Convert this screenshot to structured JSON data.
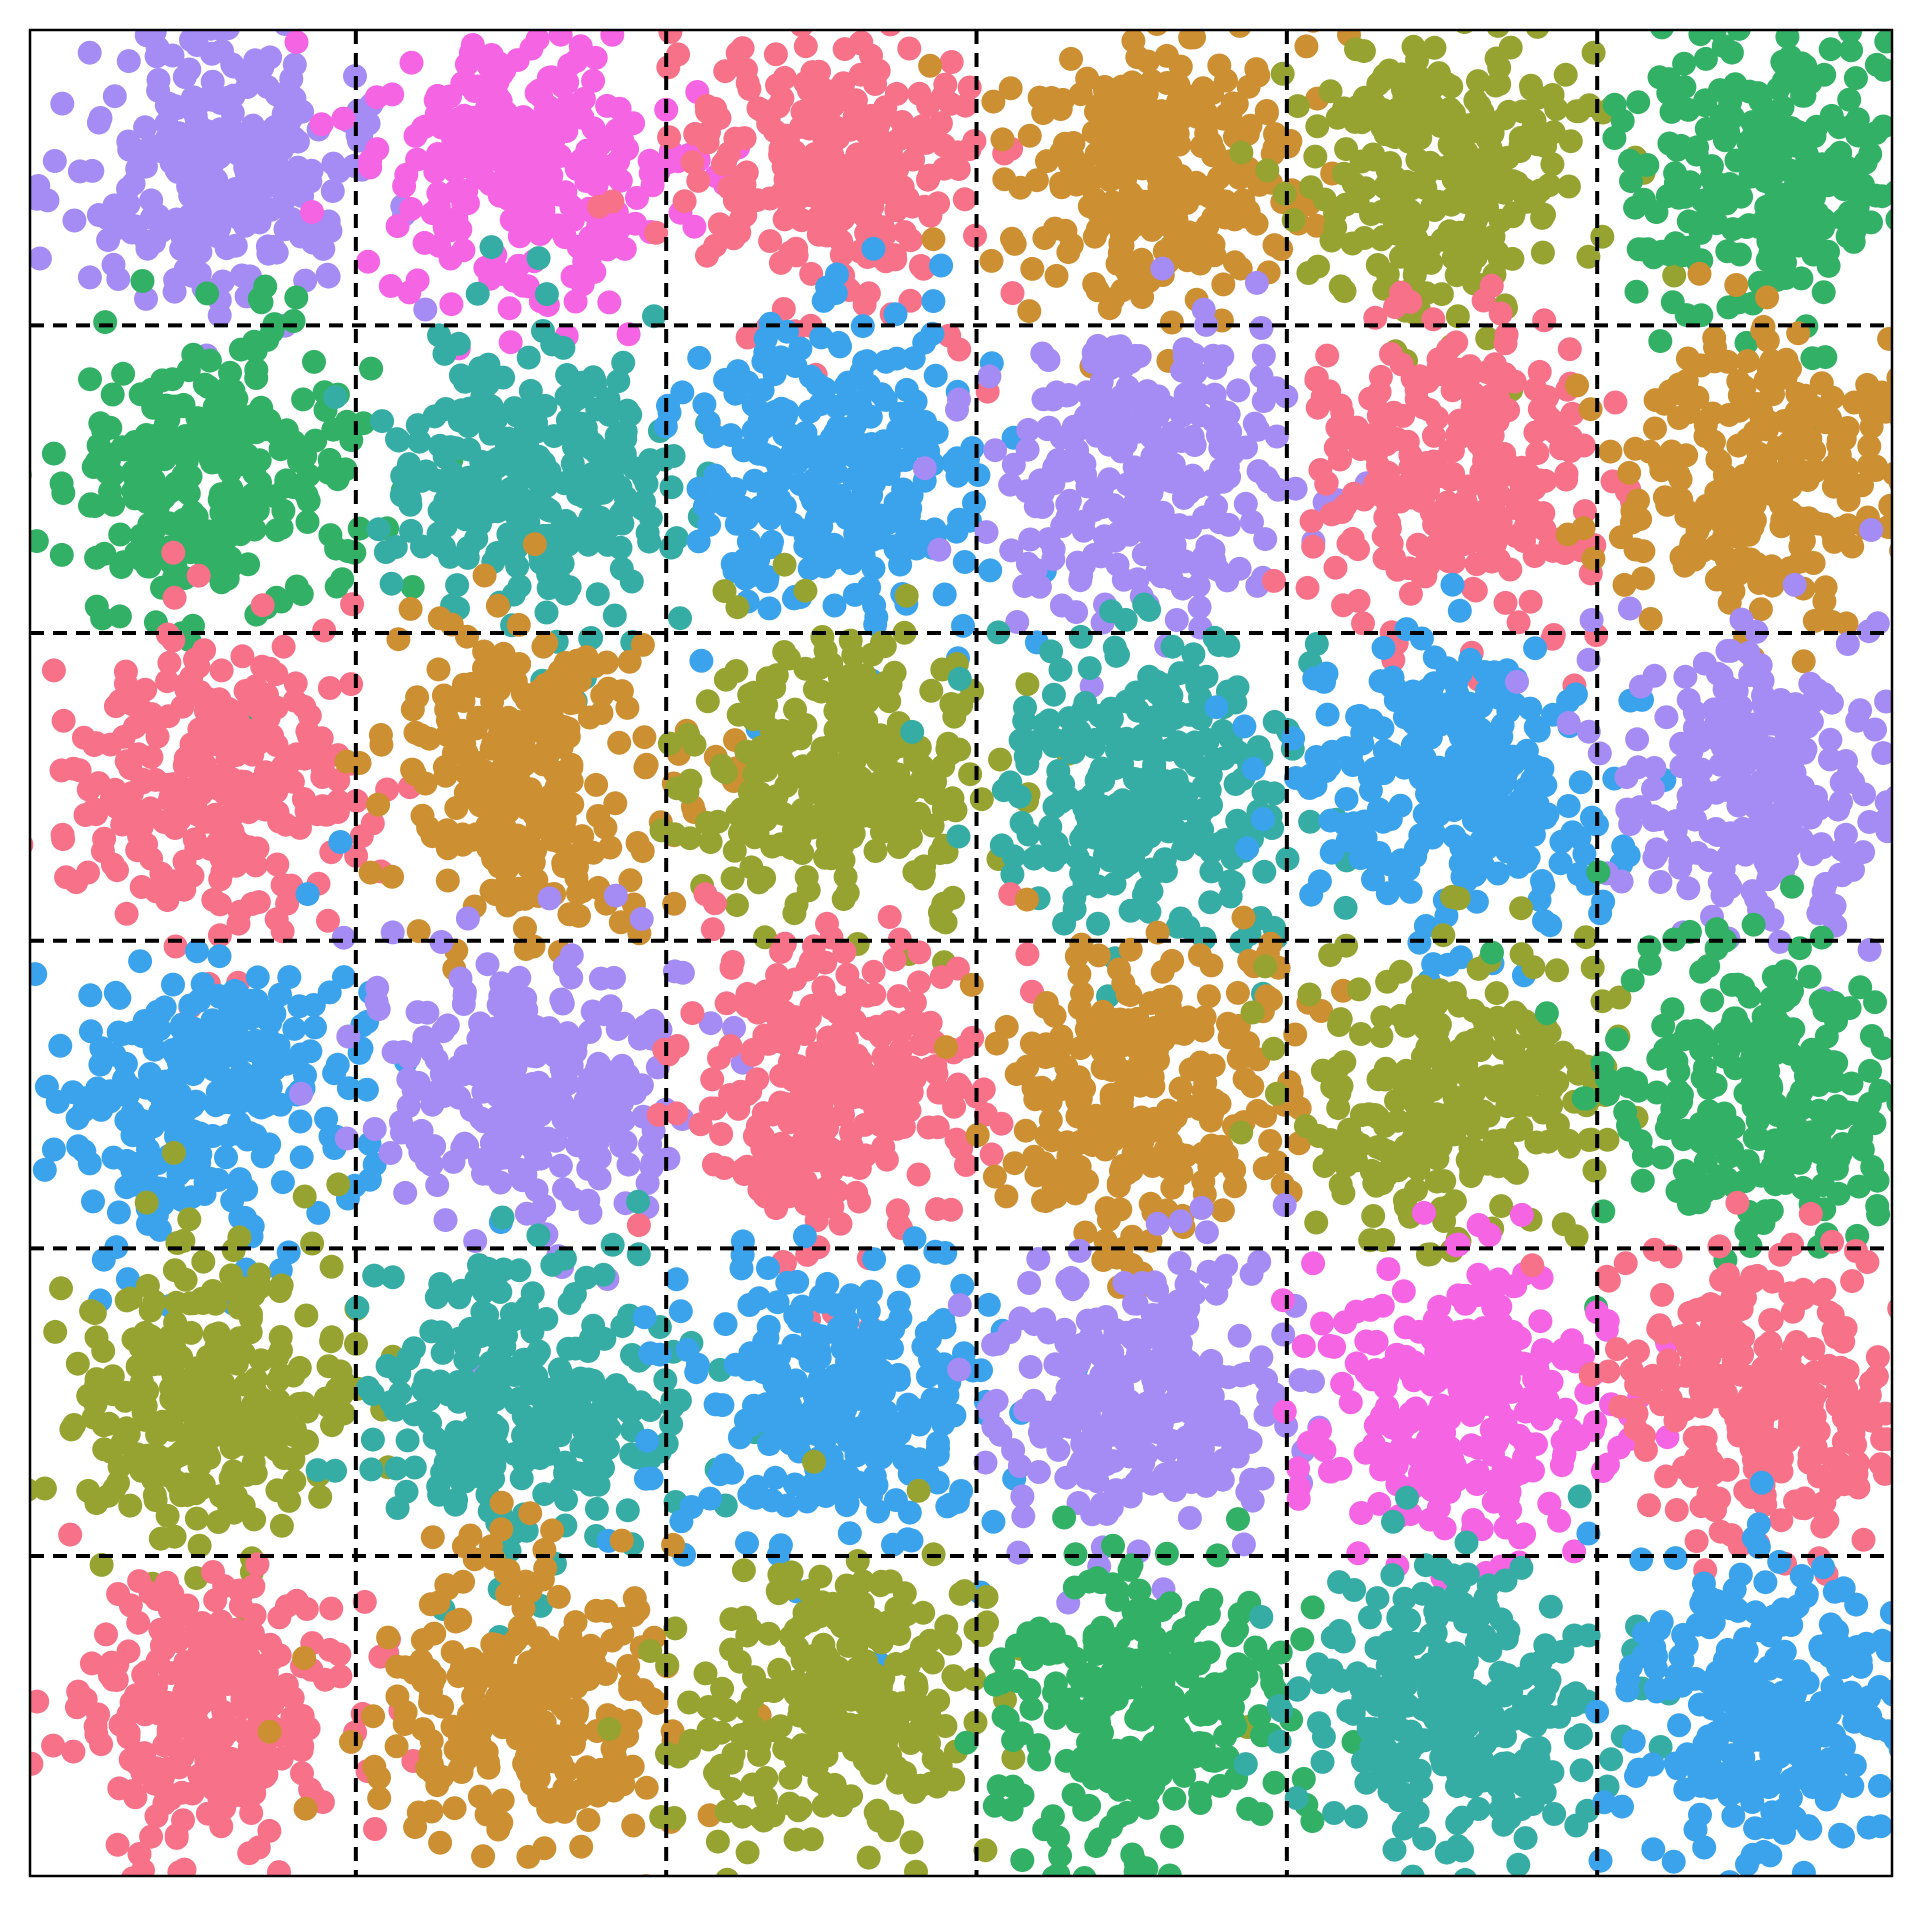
{
  "chart_data": {
    "type": "scatter",
    "title": "",
    "xlabel": "",
    "ylabel": "",
    "xlim": [
      0,
      6
    ],
    "ylim": [
      0,
      6
    ],
    "axes_visible": false,
    "grid": {
      "on": true,
      "style": "dashed",
      "color": "#000000",
      "x": [
        0,
        1.05,
        2.05,
        3.05,
        4.05,
        5.05,
        6
      ],
      "y": [
        0,
        1.04,
        2.04,
        3.04,
        4.04,
        5.04,
        6
      ]
    },
    "points_per_cluster": 280,
    "cluster_spread": 0.24,
    "clusters": [
      {
        "cx": 0.58,
        "cy": 5.55,
        "color": "#a48cf4"
      },
      {
        "cx": 1.6,
        "cy": 5.55,
        "color": "#f564e3"
      },
      {
        "cx": 2.6,
        "cy": 5.55,
        "color": "#f77189"
      },
      {
        "cx": 3.6,
        "cy": 5.55,
        "color": "#cc8f32"
      },
      {
        "cx": 4.6,
        "cy": 5.55,
        "color": "#96a331"
      },
      {
        "cx": 5.6,
        "cy": 5.55,
        "color": "#32b166"
      },
      {
        "cx": 0.58,
        "cy": 4.55,
        "color": "#32b166"
      },
      {
        "cx": 1.6,
        "cy": 4.55,
        "color": "#36ada4"
      },
      {
        "cx": 2.6,
        "cy": 4.55,
        "color": "#3ba3ec"
      },
      {
        "cx": 3.6,
        "cy": 4.55,
        "color": "#a48cf4"
      },
      {
        "cx": 4.6,
        "cy": 4.55,
        "color": "#f77189"
      },
      {
        "cx": 5.6,
        "cy": 4.55,
        "color": "#cc8f32"
      },
      {
        "cx": 0.58,
        "cy": 3.55,
        "color": "#f77189"
      },
      {
        "cx": 1.6,
        "cy": 3.55,
        "color": "#cc8f32"
      },
      {
        "cx": 2.6,
        "cy": 3.55,
        "color": "#96a331"
      },
      {
        "cx": 3.6,
        "cy": 3.55,
        "color": "#36ada4"
      },
      {
        "cx": 4.6,
        "cy": 3.55,
        "color": "#3ba3ec"
      },
      {
        "cx": 5.6,
        "cy": 3.55,
        "color": "#a48cf4"
      },
      {
        "cx": 0.58,
        "cy": 2.55,
        "color": "#3ba3ec"
      },
      {
        "cx": 1.6,
        "cy": 2.55,
        "color": "#a48cf4"
      },
      {
        "cx": 2.6,
        "cy": 2.55,
        "color": "#f77189"
      },
      {
        "cx": 3.6,
        "cy": 2.55,
        "color": "#cc8f32"
      },
      {
        "cx": 4.6,
        "cy": 2.55,
        "color": "#96a331"
      },
      {
        "cx": 5.6,
        "cy": 2.55,
        "color": "#32b166"
      },
      {
        "cx": 0.58,
        "cy": 1.55,
        "color": "#96a331"
      },
      {
        "cx": 1.6,
        "cy": 1.55,
        "color": "#36ada4"
      },
      {
        "cx": 2.6,
        "cy": 1.55,
        "color": "#3ba3ec"
      },
      {
        "cx": 3.6,
        "cy": 1.55,
        "color": "#a48cf4"
      },
      {
        "cx": 4.6,
        "cy": 1.55,
        "color": "#f564e3"
      },
      {
        "cx": 5.6,
        "cy": 1.55,
        "color": "#f77189"
      },
      {
        "cx": 0.58,
        "cy": 0.55,
        "color": "#f77189"
      },
      {
        "cx": 1.6,
        "cy": 0.55,
        "color": "#cc8f32"
      },
      {
        "cx": 2.6,
        "cy": 0.55,
        "color": "#96a331"
      },
      {
        "cx": 3.6,
        "cy": 0.55,
        "color": "#32b166"
      },
      {
        "cx": 4.6,
        "cy": 0.55,
        "color": "#36ada4"
      },
      {
        "cx": 5.6,
        "cy": 0.55,
        "color": "#3ba3ec"
      }
    ]
  }
}
